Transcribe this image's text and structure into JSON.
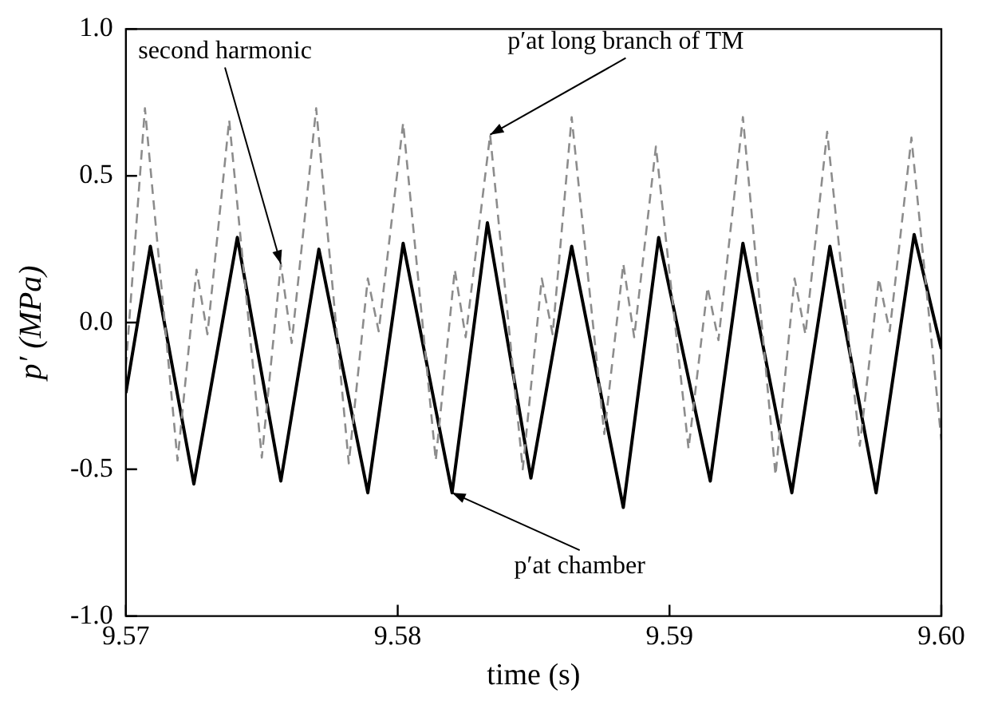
{
  "chart_data": {
    "type": "line",
    "xlabel": "time (s)",
    "ylabel": "p′ (MPa)",
    "xlim": [
      9.57,
      9.6
    ],
    "xticks": [
      9.57,
      9.58,
      9.59,
      {
        "value": 9.6,
        "label": "9.60"
      }
    ],
    "ylim": [
      -1,
      1
    ],
    "yticks": [
      {
        "value": -1,
        "label": "-1.0"
      },
      {
        "value": -0.5,
        "label": "-0.5"
      },
      {
        "value": 0,
        "label": "0.0"
      },
      {
        "value": 0.5,
        "label": "0.5"
      },
      {
        "value": 1,
        "label": "1.0"
      }
    ],
    "grid": false,
    "legend": false,
    "marker": "none",
    "series": [
      {
        "color": "#8c8c8c",
        "line_style": "dashed",
        "x": [
          9.57,
          9.5707,
          9.5719,
          9.5726,
          9.573,
          9.5738,
          9.575,
          9.5757,
          9.5761,
          9.577,
          9.5782,
          9.5789,
          9.5793,
          9.5802,
          9.5814,
          9.5821,
          9.5825,
          9.5834,
          9.5846,
          9.5853,
          9.5857,
          9.5864,
          9.5876,
          9.5883,
          9.5887,
          9.5895,
          9.5907,
          9.5914,
          9.5918,
          9.5927,
          9.5939,
          9.5946,
          9.595,
          9.5958,
          9.597,
          9.5977,
          9.5981,
          9.5989,
          9.6
        ],
        "values": [
          -0.15,
          0.73,
          -0.47,
          0.18,
          -0.04,
          0.69,
          -0.46,
          0.2,
          -0.07,
          0.73,
          -0.48,
          0.15,
          -0.03,
          0.68,
          -0.47,
          0.18,
          -0.05,
          0.64,
          -0.5,
          0.15,
          -0.04,
          0.7,
          -0.38,
          0.2,
          -0.05,
          0.6,
          -0.43,
          0.12,
          -0.06,
          0.7,
          -0.52,
          0.15,
          -0.04,
          0.65,
          -0.42,
          0.15,
          -0.03,
          0.63,
          -0.4
        ]
      },
      {
        "color": "#000000",
        "line_style": "solid",
        "x": [
          9.57,
          9.5709,
          9.5725,
          9.5741,
          9.5757,
          9.5771,
          9.5789,
          9.5802,
          9.582,
          9.5833,
          9.5849,
          9.5864,
          9.5883,
          9.5896,
          9.5915,
          9.5927,
          9.5945,
          9.5959,
          9.5976,
          9.599,
          9.6
        ],
        "values": [
          -0.24,
          0.26,
          -0.55,
          0.29,
          -0.54,
          0.25,
          -0.58,
          0.27,
          -0.58,
          0.34,
          -0.53,
          0.26,
          -0.63,
          0.29,
          -0.54,
          0.27,
          -0.58,
          0.26,
          -0.58,
          0.3,
          -0.09
        ]
      }
    ],
    "annotations": [
      {
        "text": "second harmonic",
        "x": 9.5757,
        "y": 0.2
      },
      {
        "text": "p′at long branch of TM",
        "x": 9.5834,
        "y": 0.64
      },
      {
        "text": "p′at chamber",
        "x": 9.582,
        "y": -0.58
      }
    ]
  }
}
